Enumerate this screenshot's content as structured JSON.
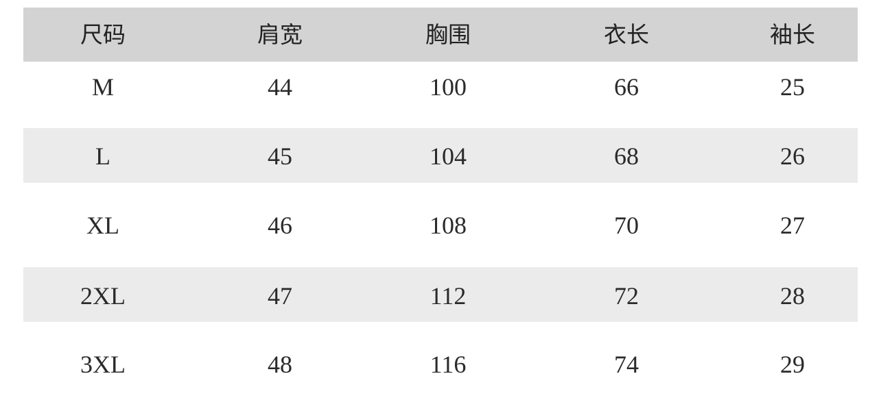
{
  "table": {
    "headers": [
      "尺码",
      "肩宽",
      "胸围",
      "衣长",
      "袖长"
    ],
    "rows": [
      [
        "M",
        "44",
        "100",
        "66",
        "25"
      ],
      [
        "L",
        "45",
        "104",
        "68",
        "26"
      ],
      [
        "XL",
        "46",
        "108",
        "70",
        "27"
      ],
      [
        "2XL",
        "47",
        "112",
        "72",
        "28"
      ],
      [
        "3XL",
        "48",
        "116",
        "74",
        "29"
      ]
    ]
  },
  "colors": {
    "header_bg": "#d3d3d3",
    "stripe_bg": "#ebebeb"
  }
}
